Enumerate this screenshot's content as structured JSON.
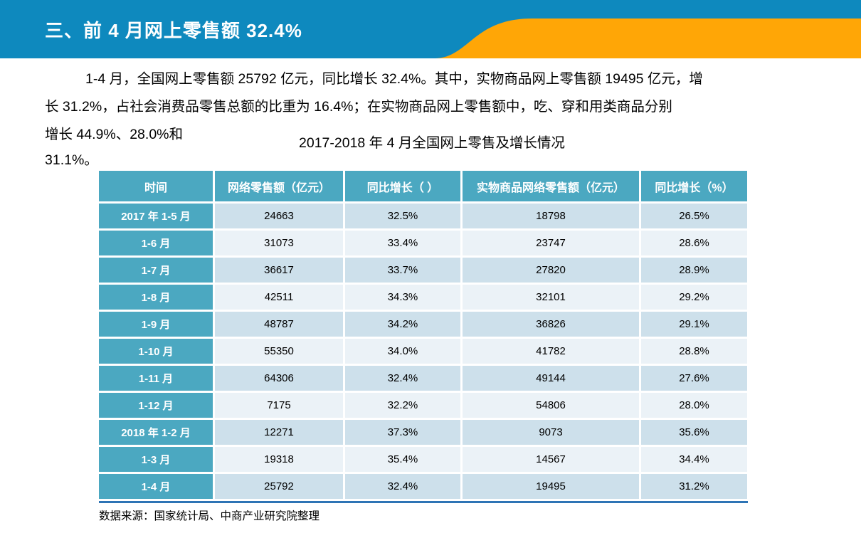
{
  "header": {
    "title": "三、前 4 月网上零售额 32.4%",
    "band_color": "#0E89BE",
    "accent_color": "#FFA606"
  },
  "paragraph": {
    "line1": "1-4 月，全国网上零售额 25792 亿元，同比增长 32.4%。其中，实物商品网上零售额 19495 亿元，增",
    "line2": "长 31.2%，占社会消费品零售总额的比重为 16.4%；在实物商品网上零售额中，吃、穿和用类商品分别",
    "line3": "增长 44.9%、28.0%和",
    "line4": "31.1%。"
  },
  "table": {
    "title": "2017-2018 年 4 月全国网上零售及增长情况",
    "columns": [
      "时间",
      "网络零售额（亿元）",
      "同比增长（ ）",
      "实物商品网络零售额（亿元）",
      "同比增长（%）"
    ],
    "rows": [
      {
        "label": "2017 年 1-5 月",
        "values": [
          "24663",
          "32.5%",
          "18798",
          "26.5%"
        ]
      },
      {
        "label": "1-6 月",
        "values": [
          "31073",
          "33.4%",
          "23747",
          "28.6%"
        ]
      },
      {
        "label": "1-7 月",
        "values": [
          "36617",
          "33.7%",
          "27820",
          "28.9%"
        ]
      },
      {
        "label": "1-8 月",
        "values": [
          "42511",
          "34.3%",
          "32101",
          "29.2%"
        ]
      },
      {
        "label": "1-9 月",
        "values": [
          "48787",
          "34.2%",
          "36826",
          "29.1%"
        ]
      },
      {
        "label": "1-10 月",
        "values": [
          "55350",
          "34.0%",
          "41782",
          "28.8%"
        ]
      },
      {
        "label": "1-11 月",
        "values": [
          "64306",
          "32.4%",
          "49144",
          "27.6%"
        ]
      },
      {
        "label": "1-12 月",
        "values": [
          "7175",
          "32.2%",
          "54806",
          "28.0%"
        ]
      },
      {
        "label": "2018 年 1-2 月",
        "values": [
          "12271",
          "37.3%",
          "9073",
          "35.6%"
        ]
      },
      {
        "label": "1-3 月",
        "values": [
          "19318",
          "35.4%",
          "14567",
          "34.4%"
        ]
      },
      {
        "label": "1-4 月",
        "values": [
          "25792",
          "32.4%",
          "19495",
          "31.2%"
        ]
      }
    ],
    "colors": {
      "header_bg": "#4BA8C1",
      "row_label_bg": "#4BA8C1",
      "stripe_dark": "#CDE0EB",
      "stripe_light": "#EBF2F7",
      "bottom_line": "#2E74B5"
    }
  },
  "footer": {
    "source": "数据来源：国家统计局、中商产业研究院整理"
  }
}
